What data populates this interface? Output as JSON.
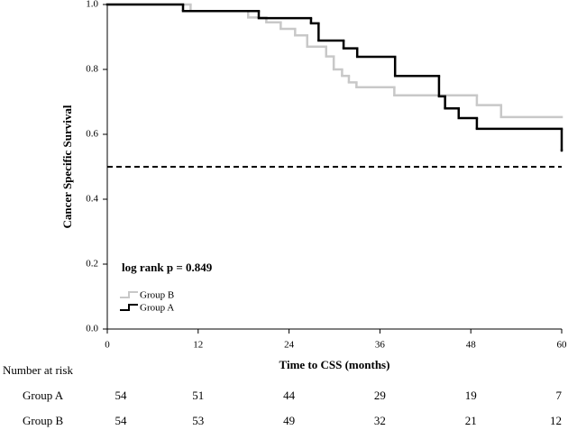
{
  "chart_data": {
    "type": "step",
    "xlabel": "Time to CSS (months)",
    "ylabel": "Cancer Specific Survival",
    "annotation": "log rank p = 0.849",
    "xlim": [
      0,
      60
    ],
    "xticks": [
      0,
      12,
      24,
      36,
      48,
      60
    ],
    "ylim": [
      0,
      1
    ],
    "yticks": [
      {
        "value": 0,
        "label": "0.0"
      },
      0.2,
      0.4,
      0.6,
      0.8,
      {
        "value": 1,
        "label": "1.0"
      }
    ],
    "reference_line": 0.5,
    "legend": "lower-left",
    "series": [
      {
        "name": "Group B",
        "color": "#c8c8c8",
        "x": [
          0,
          11,
          18.6,
          21,
          22.9,
          24.8,
          26.4,
          28.9,
          29.9,
          31,
          31.9,
          32.9,
          37.9,
          48.8,
          52
        ],
        "values": [
          1.0,
          0.98,
          0.96,
          0.945,
          0.925,
          0.905,
          0.87,
          0.84,
          0.8,
          0.78,
          0.76,
          0.745,
          0.72,
          0.69,
          0.653
        ]
      },
      {
        "name": "Group A",
        "color": "#000000",
        "x": [
          0,
          10,
          20,
          26.9,
          27.9,
          31.2,
          33,
          38,
          43.8,
          44.6,
          46.4,
          48.8,
          60
        ],
        "values": [
          1.0,
          0.98,
          0.958,
          0.942,
          0.889,
          0.865,
          0.839,
          0.78,
          0.717,
          0.68,
          0.65,
          0.617,
          0.55
        ]
      }
    ],
    "risk_table": {
      "title": "Number at risk",
      "rows": [
        {
          "name": "Group A",
          "counts": [
            54,
            51,
            44,
            29,
            19,
            7
          ]
        },
        {
          "name": "Group B",
          "counts": [
            54,
            53,
            49,
            32,
            21,
            12
          ]
        }
      ]
    }
  }
}
